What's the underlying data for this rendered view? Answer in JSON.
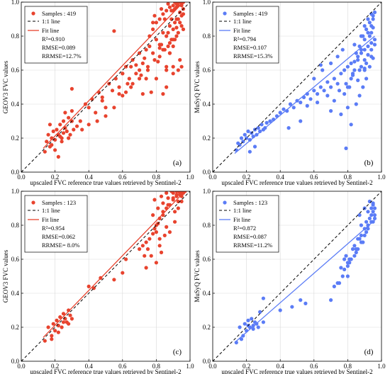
{
  "chart_data": [
    {
      "type": "scatter",
      "panel_label": "(a)",
      "xlabel": "upscaled FVC reference true values retrieved by Sentinel-2",
      "ylabel": "GEOV3 FVC values",
      "xlim": [
        0,
        1.0
      ],
      "ylim": [
        0,
        1.0
      ],
      "x_ticks": [
        "0.0",
        "0.2",
        "0.4",
        "0.6",
        "0.8",
        "1.0"
      ],
      "y_ticks": [
        "0.0",
        "0.2",
        "0.4",
        "0.6",
        "0.8",
        "1.0"
      ],
      "grid": true,
      "legend_position": "top-left",
      "point_color": "#e8432e",
      "legend": {
        "samples": "Samples : 419",
        "one_to_one": "1:1 line",
        "fit": "Fit line"
      },
      "stats": {
        "r2": "R²=0.910",
        "rmse": "RMSE=0.089",
        "rrmse": "RRMSE=12.7%"
      },
      "fit": {
        "x": [
          0.13,
          0.96
        ],
        "y": [
          0.14,
          1.0
        ]
      },
      "x": [
        0.15,
        0.16,
        0.17,
        0.18,
        0.19,
        0.2,
        0.21,
        0.22,
        0.23,
        0.24,
        0.25,
        0.26,
        0.27,
        0.28,
        0.17,
        0.2,
        0.23,
        0.26,
        0.29,
        0.3,
        0.31,
        0.33,
        0.35,
        0.14,
        0.18,
        0.22,
        0.25,
        0.28,
        0.24,
        0.3,
        0.36,
        0.38,
        0.4,
        0.42,
        0.44,
        0.46,
        0.48,
        0.5,
        0.52,
        0.54,
        0.56,
        0.58,
        0.6,
        0.62,
        0.64,
        0.66,
        0.68,
        0.7,
        0.72,
        0.74,
        0.45,
        0.5,
        0.55,
        0.6,
        0.65,
        0.7,
        0.75,
        0.4,
        0.48,
        0.58,
        0.63,
        0.68,
        0.73,
        0.76,
        0.78,
        0.8,
        0.82,
        0.84,
        0.86,
        0.88,
        0.9,
        0.92,
        0.94,
        0.96,
        0.78,
        0.8,
        0.82,
        0.84,
        0.86,
        0.88,
        0.9,
        0.92,
        0.94,
        0.95,
        0.76,
        0.79,
        0.83,
        0.87,
        0.91,
        0.93,
        0.95,
        0.85,
        0.89,
        0.92,
        0.94,
        0.96,
        0.88,
        0.9,
        0.91,
        0.93,
        0.95,
        0.82,
        0.86,
        0.9,
        0.94,
        0.84,
        0.88,
        0.92,
        0.96,
        0.8,
        0.86,
        0.9,
        0.95,
        0.77,
        0.81,
        0.85,
        0.89,
        0.93,
        0.79,
        0.83,
        0.87,
        0.91,
        0.95,
        0.3,
        0.55,
        0.6,
        0.65,
        0.72,
        0.75,
        0.84,
        0.86,
        0.88,
        0.9,
        0.92,
        0.94,
        0.78,
        0.82,
        0.9,
        0.93,
        0.96,
        0.71,
        0.74,
        0.87,
        0.89,
        0.91,
        0.93,
        0.95,
        0.62,
        0.66,
        0.7
      ],
      "y": [
        0.18,
        0.22,
        0.15,
        0.2,
        0.24,
        0.19,
        0.25,
        0.22,
        0.28,
        0.2,
        0.3,
        0.26,
        0.24,
        0.32,
        0.28,
        0.13,
        0.21,
        0.35,
        0.22,
        0.3,
        0.25,
        0.27,
        0.3,
        0.12,
        0.16,
        0.09,
        0.23,
        0.2,
        0.18,
        0.36,
        0.25,
        0.4,
        0.38,
        0.43,
        0.35,
        0.47,
        0.44,
        0.38,
        0.52,
        0.48,
        0.55,
        0.5,
        0.58,
        0.62,
        0.55,
        0.66,
        0.63,
        0.7,
        0.64,
        0.72,
        0.3,
        0.33,
        0.38,
        0.45,
        0.5,
        0.55,
        0.6,
        0.28,
        0.42,
        0.46,
        0.52,
        0.58,
        0.67,
        0.74,
        0.7,
        0.78,
        0.75,
        0.82,
        0.8,
        0.86,
        0.84,
        0.9,
        0.88,
        0.93,
        0.84,
        0.88,
        0.9,
        0.93,
        0.95,
        0.97,
        0.98,
        0.99,
        1.0,
        0.98,
        0.8,
        0.92,
        0.96,
        0.99,
        1.0,
        1.0,
        0.99,
        0.9,
        0.95,
        0.97,
        1.0,
        1.0,
        0.7,
        0.74,
        0.78,
        0.82,
        0.86,
        0.68,
        0.6,
        0.62,
        0.66,
        0.72,
        0.76,
        0.8,
        0.84,
        0.55,
        0.5,
        0.58,
        0.62,
        0.47,
        0.65,
        0.72,
        0.78,
        0.9,
        0.66,
        0.75,
        0.82,
        0.88,
        0.92,
        0.49,
        0.83,
        0.58,
        0.62,
        0.46,
        0.62,
        0.46,
        0.62,
        0.7,
        0.78,
        0.85,
        0.94,
        0.88,
        0.73,
        0.95,
        0.6,
        0.96,
        0.57,
        0.55,
        0.74,
        0.9,
        0.96,
        0.98,
        1.0,
        0.47,
        0.52,
        0.6
      ]
    },
    {
      "type": "scatter",
      "panel_label": "(b)",
      "xlabel": "upscaled FVC reference true values retrieved by Sentinel-2",
      "ylabel": "MuSyQ FVC values",
      "xlim": [
        0,
        1.0
      ],
      "ylim": [
        0,
        1.0
      ],
      "x_ticks": [
        "0.0",
        "0.2",
        "0.4",
        "0.6",
        "0.8",
        "1.0"
      ],
      "y_ticks": [
        "0.0",
        "0.2",
        "0.4",
        "0.6",
        "0.8",
        "1.0"
      ],
      "grid": true,
      "legend_position": "top-left",
      "point_color": "#5b7cf6",
      "legend": {
        "samples": "Samples : 419",
        "one_to_one": "1:1 line",
        "fit": "Fit line"
      },
      "stats": {
        "r2": "R²=0.794",
        "rmse": "RMSE=0.107",
        "rrmse": "RRMSE=15.3%"
      },
      "fit": {
        "x": [
          0.13,
          0.96
        ],
        "y": [
          0.11,
          0.8
        ]
      },
      "x": [
        0.14,
        0.15,
        0.16,
        0.17,
        0.18,
        0.19,
        0.2,
        0.21,
        0.22,
        0.23,
        0.24,
        0.25,
        0.26,
        0.27,
        0.28,
        0.29,
        0.3,
        0.31,
        0.32,
        0.34,
        0.36,
        0.38,
        0.4,
        0.42,
        0.44,
        0.46,
        0.48,
        0.5,
        0.52,
        0.54,
        0.56,
        0.58,
        0.6,
        0.62,
        0.64,
        0.66,
        0.68,
        0.7,
        0.72,
        0.74,
        0.76,
        0.78,
        0.8,
        0.82,
        0.84,
        0.86,
        0.88,
        0.9,
        0.92,
        0.94,
        0.96,
        0.8,
        0.82,
        0.84,
        0.86,
        0.88,
        0.9,
        0.92,
        0.94,
        0.95,
        0.85,
        0.87,
        0.89,
        0.91,
        0.93,
        0.95,
        0.83,
        0.88,
        0.9,
        0.92,
        0.94,
        0.96,
        0.78,
        0.81,
        0.86,
        0.9,
        0.93,
        0.95,
        0.72,
        0.75,
        0.79,
        0.83,
        0.87,
        0.91,
        0.94,
        0.6,
        0.65,
        0.7,
        0.74,
        0.77,
        0.84,
        0.88,
        0.9,
        0.92,
        0.94,
        0.96,
        0.93,
        0.95,
        0.91,
        0.89,
        0.87,
        0.85,
        0.76,
        0.8,
        0.64,
        0.68,
        0.22,
        0.25,
        0.45,
        0.52,
        0.56,
        0.62,
        0.7,
        0.79,
        0.82,
        0.9,
        0.94
      ],
      "y": [
        0.13,
        0.17,
        0.16,
        0.2,
        0.18,
        0.22,
        0.2,
        0.24,
        0.19,
        0.23,
        0.21,
        0.25,
        0.22,
        0.26,
        0.24,
        0.28,
        0.25,
        0.26,
        0.29,
        0.3,
        0.31,
        0.33,
        0.35,
        0.37,
        0.36,
        0.4,
        0.38,
        0.42,
        0.41,
        0.44,
        0.46,
        0.43,
        0.48,
        0.46,
        0.5,
        0.48,
        0.53,
        0.5,
        0.55,
        0.52,
        0.58,
        0.6,
        0.62,
        0.64,
        0.65,
        0.68,
        0.7,
        0.72,
        0.74,
        0.76,
        0.78,
        0.5,
        0.55,
        0.6,
        0.66,
        0.72,
        0.78,
        0.82,
        0.86,
        0.9,
        0.7,
        0.74,
        0.8,
        0.84,
        0.88,
        0.92,
        0.58,
        0.62,
        0.66,
        0.69,
        0.72,
        0.75,
        0.46,
        0.5,
        0.54,
        0.6,
        0.8,
        0.85,
        0.42,
        0.48,
        0.52,
        0.57,
        0.6,
        0.64,
        0.68,
        0.55,
        0.6,
        0.64,
        0.68,
        0.72,
        0.75,
        0.8,
        0.86,
        0.9,
        0.93,
        0.94,
        0.62,
        0.67,
        0.55,
        0.5,
        0.45,
        0.4,
        0.34,
        0.38,
        0.63,
        0.45,
        0.12,
        0.15,
        0.26,
        0.3,
        0.39,
        0.41,
        0.36,
        0.14,
        0.28,
        0.61,
        0.82
      ]
    },
    {
      "type": "scatter",
      "panel_label": "(c)",
      "xlabel": "upscaled FVC reference true values retrieved by Sentinel-2",
      "ylabel": "GEOV3 FVC values",
      "xlim": [
        0,
        1.0
      ],
      "ylim": [
        0,
        1.0
      ],
      "x_ticks": [
        "0.0",
        "0.2",
        "0.4",
        "0.6",
        "0.8",
        "1.0"
      ],
      "y_ticks": [
        "0.0",
        "0.2",
        "0.4",
        "0.6",
        "0.8",
        "1.0"
      ],
      "grid": true,
      "legend_position": "top-left",
      "point_color": "#e8432e",
      "legend": {
        "samples": "Samples : 123",
        "one_to_one": "1:1 line",
        "fit": "Fit line"
      },
      "stats": {
        "r2": "R²=0.954",
        "rmse": "RMSE=0.062",
        "rrmse": "RRMSE= 8.0%"
      },
      "fit": {
        "x": [
          0.13,
          0.96
        ],
        "y": [
          0.14,
          0.99
        ]
      },
      "x": [
        0.14,
        0.16,
        0.18,
        0.19,
        0.2,
        0.21,
        0.22,
        0.23,
        0.24,
        0.25,
        0.26,
        0.27,
        0.28,
        0.29,
        0.3,
        0.18,
        0.22,
        0.25,
        0.28,
        0.4,
        0.43,
        0.47,
        0.55,
        0.6,
        0.62,
        0.7,
        0.72,
        0.74,
        0.76,
        0.78,
        0.8,
        0.82,
        0.84,
        0.86,
        0.88,
        0.9,
        0.92,
        0.94,
        0.96,
        0.78,
        0.81,
        0.84,
        0.87,
        0.9,
        0.93,
        0.95,
        0.79,
        0.83,
        0.86,
        0.89,
        0.92,
        0.94,
        0.96,
        0.77,
        0.8,
        0.82,
        0.85,
        0.88,
        0.91,
        0.93,
        0.95,
        0.73,
        0.75,
        0.79,
        0.81,
        0.84,
        0.87,
        0.9,
        0.92,
        0.94,
        0.96,
        0.74,
        0.8,
        0.82,
        0.86,
        0.91,
        0.93,
        0.95,
        0.97,
        0.83
      ],
      "y": [
        0.12,
        0.2,
        0.15,
        0.22,
        0.18,
        0.24,
        0.21,
        0.26,
        0.2,
        0.28,
        0.25,
        0.23,
        0.3,
        0.27,
        0.25,
        0.13,
        0.17,
        0.23,
        0.22,
        0.44,
        0.43,
        0.49,
        0.48,
        0.52,
        0.6,
        0.66,
        0.68,
        0.7,
        0.72,
        0.75,
        0.8,
        0.84,
        0.88,
        0.9,
        0.92,
        0.95,
        0.97,
        0.99,
        1.0,
        0.86,
        0.9,
        0.93,
        0.96,
        0.99,
        1.0,
        0.98,
        0.95,
        0.97,
        0.99,
        1.0,
        1.0,
        0.98,
        1.0,
        0.62,
        0.58,
        0.68,
        0.74,
        0.76,
        0.82,
        0.9,
        0.94,
        0.62,
        0.66,
        0.78,
        0.81,
        0.86,
        0.92,
        0.96,
        0.98,
        1.0,
        0.99,
        0.55,
        0.76,
        0.72,
        0.79,
        0.88,
        0.94,
        0.97,
        1.0,
        0.64
      ]
    },
    {
      "type": "scatter",
      "panel_label": "(d)",
      "xlabel": "upscaled FVC reference true values retrieved by Sentinel-2",
      "ylabel": "MuSyQ FVC values",
      "xlim": [
        0,
        1.0
      ],
      "ylim": [
        0,
        1.0
      ],
      "x_ticks": [
        "0.0",
        "0.2",
        "0.4",
        "0.6",
        "0.8",
        "1.0"
      ],
      "y_ticks": [
        "0.0",
        "0.2",
        "0.4",
        "0.6",
        "0.8",
        "1.0"
      ],
      "grid": true,
      "legend_position": "top-left",
      "point_color": "#5b7cf6",
      "legend": {
        "samples": "Samples : 123",
        "one_to_one": "1:1 line",
        "fit": "Fit line"
      },
      "stats": {
        "r2": "R²=0.872",
        "rmse": "RMSE=0.087",
        "rrmse": "RRMSE=11.2%"
      },
      "fit": {
        "x": [
          0.13,
          0.96
        ],
        "y": [
          0.11,
          0.83
        ]
      },
      "x": [
        0.14,
        0.16,
        0.18,
        0.19,
        0.2,
        0.21,
        0.22,
        0.23,
        0.24,
        0.25,
        0.26,
        0.27,
        0.28,
        0.3,
        0.17,
        0.21,
        0.24,
        0.3,
        0.4,
        0.47,
        0.52,
        0.55,
        0.7,
        0.72,
        0.75,
        0.78,
        0.8,
        0.82,
        0.84,
        0.86,
        0.88,
        0.9,
        0.92,
        0.94,
        0.96,
        0.79,
        0.83,
        0.87,
        0.9,
        0.93,
        0.95,
        0.81,
        0.85,
        0.89,
        0.91,
        0.94,
        0.96,
        0.78,
        0.84,
        0.88,
        0.92,
        0.95,
        0.74,
        0.77,
        0.8,
        0.86,
        0.9,
        0.93,
        0.95,
        0.76,
        0.81,
        0.85,
        0.88,
        0.91,
        0.94,
        0.96,
        0.8,
        0.87,
        0.92,
        0.95
      ],
      "y": [
        0.11,
        0.2,
        0.15,
        0.22,
        0.18,
        0.24,
        0.2,
        0.25,
        0.21,
        0.23,
        0.22,
        0.2,
        0.29,
        0.37,
        0.13,
        0.21,
        0.19,
        0.23,
        0.3,
        0.32,
        0.36,
        0.34,
        0.36,
        0.44,
        0.46,
        0.54,
        0.58,
        0.6,
        0.62,
        0.66,
        0.7,
        0.74,
        0.8,
        0.86,
        0.9,
        0.62,
        0.66,
        0.72,
        0.78,
        0.84,
        0.88,
        0.58,
        0.64,
        0.7,
        0.76,
        0.82,
        0.86,
        0.6,
        0.68,
        0.8,
        0.88,
        0.92,
        0.46,
        0.5,
        0.56,
        0.72,
        0.9,
        0.94,
        0.93,
        0.55,
        0.6,
        0.66,
        0.74,
        0.82,
        0.9,
        0.84,
        0.5,
        0.86,
        0.78,
        0.82
      ]
    }
  ]
}
